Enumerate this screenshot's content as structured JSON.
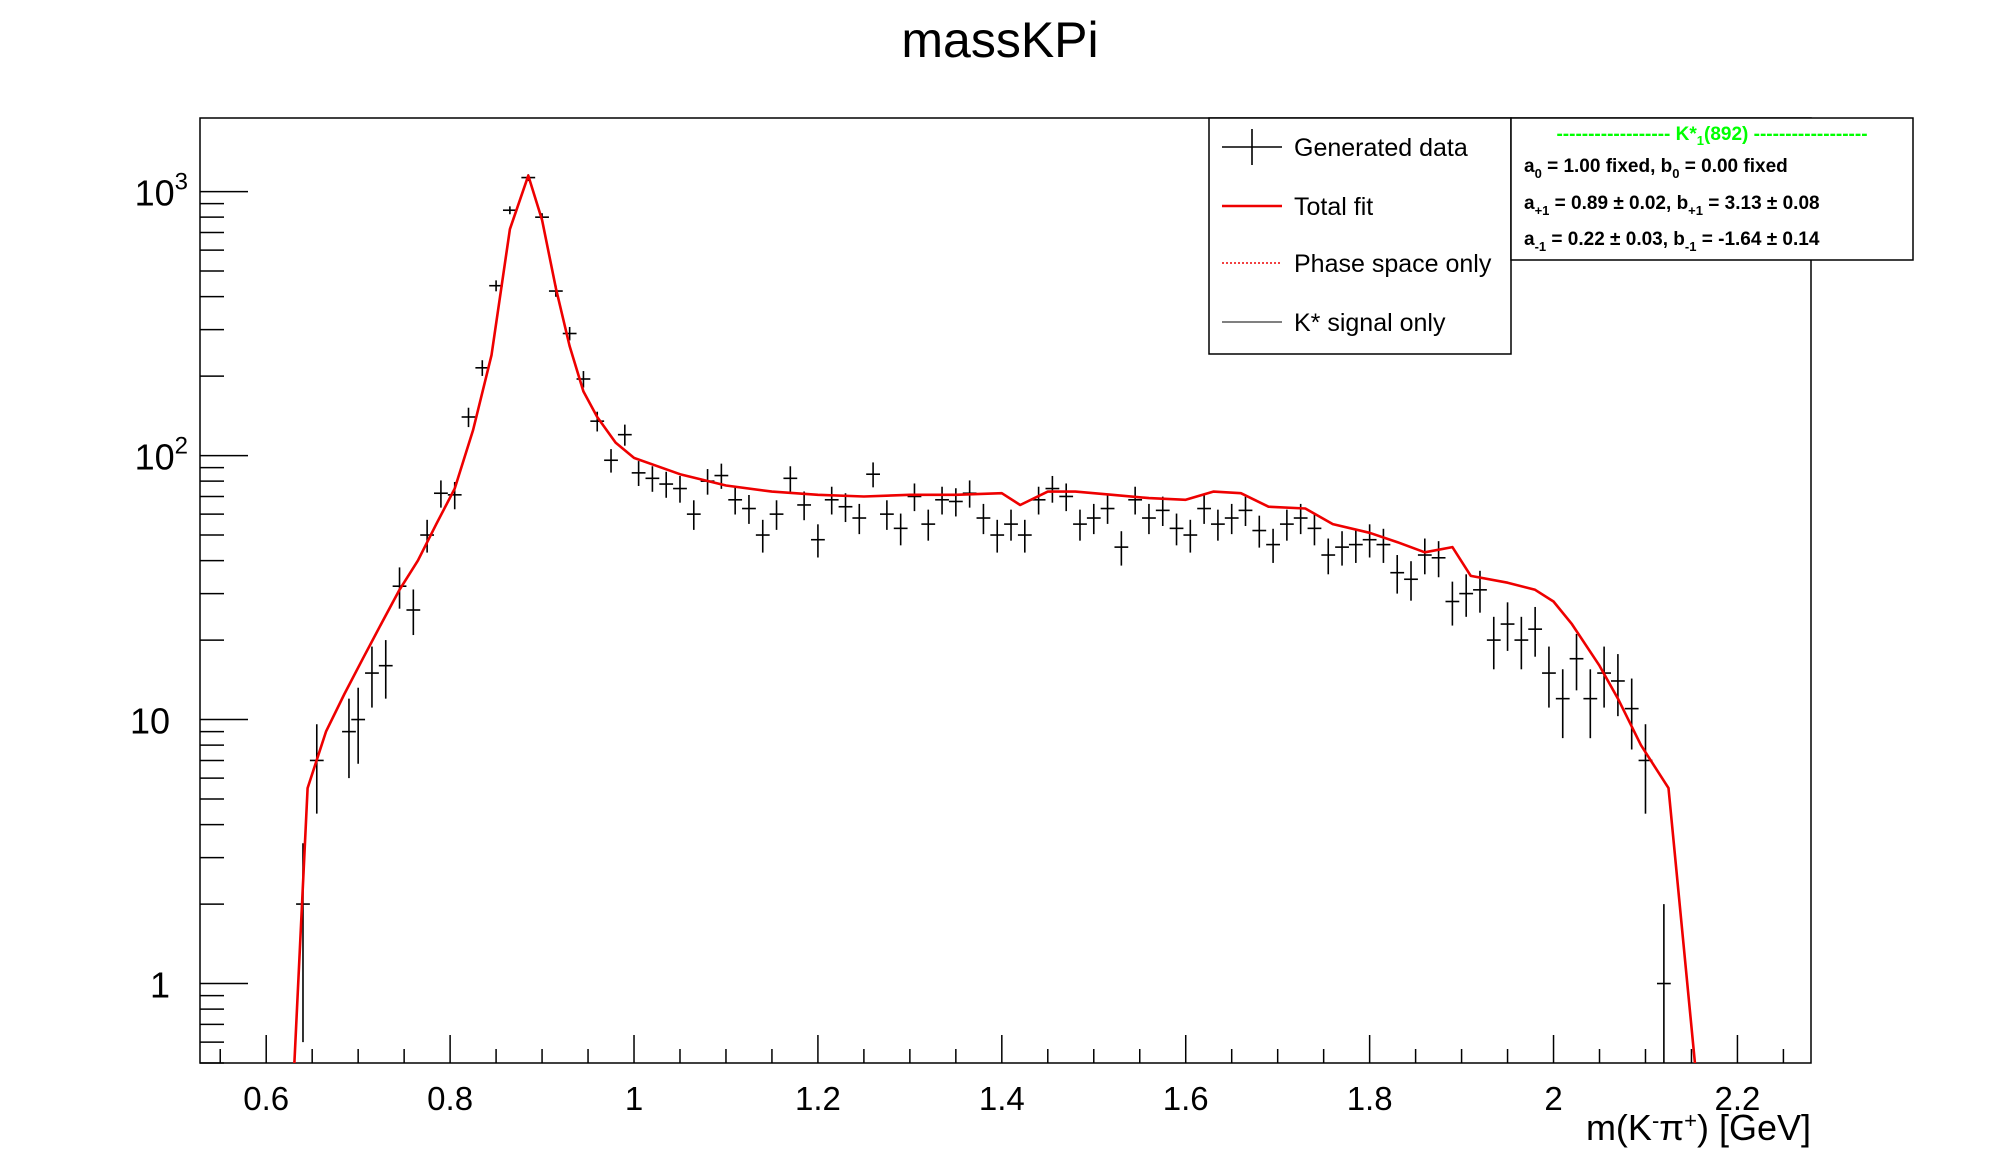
{
  "chart_data": {
    "type": "line",
    "title": "massKPi",
    "xlabel_parts": {
      "pre": "m(K",
      "sup1": "-",
      "mid": "π",
      "sup2": "+",
      "post": ") [GeV]"
    },
    "xlim": [
      0.528,
      2.28
    ],
    "ylim": [
      0.5,
      1900
    ],
    "log_y": true,
    "x_ticks": [
      {
        "v": 0.6,
        "label": "0.6"
      },
      {
        "v": 0.8,
        "label": "0.8"
      },
      {
        "v": 1.0,
        "label": "1"
      },
      {
        "v": 1.2,
        "label": "1.2"
      },
      {
        "v": 1.4,
        "label": "1.4"
      },
      {
        "v": 1.6,
        "label": "1.6"
      },
      {
        "v": 1.8,
        "label": "1.8"
      },
      {
        "v": 2.0,
        "label": "2"
      },
      {
        "v": 2.2,
        "label": "2.2"
      }
    ],
    "y_ticks": [
      {
        "v": 1,
        "base": "1",
        "exp": ""
      },
      {
        "v": 10,
        "base": "10",
        "exp": ""
      },
      {
        "v": 100,
        "base": "10",
        "exp": "2"
      },
      {
        "v": 1000,
        "base": "10",
        "exp": "3"
      }
    ],
    "bin_half_width": 0.0075,
    "series": [
      {
        "name": "Generated data",
        "style": "points",
        "color": "#000000",
        "points": [
          [
            0.64,
            2.0,
            1.4
          ],
          [
            0.655,
            7.0,
            2.6
          ],
          [
            0.69,
            9.0,
            3.0
          ],
          [
            0.7,
            10.0,
            3.2
          ],
          [
            0.715,
            15.0,
            3.9
          ],
          [
            0.73,
            16.0,
            4.0
          ],
          [
            0.745,
            32.0,
            5.7
          ],
          [
            0.76,
            26.0,
            5.1
          ],
          [
            0.775,
            50.0,
            7.1
          ],
          [
            0.79,
            72.0,
            8.5
          ],
          [
            0.805,
            71.0,
            8.4
          ],
          [
            0.82,
            140.0,
            11.8
          ],
          [
            0.835,
            215.0,
            14.7
          ],
          [
            0.85,
            440.0,
            21.0
          ],
          [
            0.865,
            850.0,
            29.2
          ],
          [
            0.885,
            1130.0,
            33.6
          ],
          [
            0.9,
            800.0,
            28.3
          ],
          [
            0.915,
            420.0,
            20.5
          ],
          [
            0.93,
            290.0,
            17.0
          ],
          [
            0.945,
            195.0,
            14.0
          ],
          [
            0.96,
            135.0,
            11.6
          ],
          [
            0.975,
            96.0,
            9.8
          ],
          [
            0.99,
            120.0,
            11.0
          ],
          [
            1.005,
            86.0,
            9.3
          ],
          [
            1.02,
            82.0,
            9.1
          ],
          [
            1.035,
            78.0,
            8.8
          ],
          [
            1.05,
            75.0,
            8.7
          ],
          [
            1.065,
            60.0,
            7.7
          ],
          [
            1.08,
            80.0,
            8.9
          ],
          [
            1.095,
            84.0,
            9.2
          ],
          [
            1.11,
            68.0,
            8.2
          ],
          [
            1.125,
            63.0,
            7.9
          ],
          [
            1.14,
            50.0,
            7.1
          ],
          [
            1.155,
            60.0,
            7.7
          ],
          [
            1.17,
            82.0,
            9.1
          ],
          [
            1.185,
            65.0,
            8.1
          ],
          [
            1.2,
            48.0,
            6.9
          ],
          [
            1.215,
            68.0,
            8.2
          ],
          [
            1.23,
            64.0,
            8.0
          ],
          [
            1.245,
            58.0,
            7.6
          ],
          [
            1.26,
            85.0,
            9.2
          ],
          [
            1.275,
            60.0,
            7.7
          ],
          [
            1.29,
            53.0,
            7.3
          ],
          [
            1.305,
            70.0,
            8.4
          ],
          [
            1.32,
            55.0,
            7.4
          ],
          [
            1.335,
            68.0,
            8.2
          ],
          [
            1.35,
            67.0,
            8.2
          ],
          [
            1.365,
            72.0,
            8.5
          ],
          [
            1.38,
            58.0,
            7.6
          ],
          [
            1.395,
            50.0,
            7.1
          ],
          [
            1.41,
            55.0,
            7.4
          ],
          [
            1.425,
            50.0,
            7.1
          ],
          [
            1.44,
            68.0,
            8.2
          ],
          [
            1.455,
            75.0,
            8.7
          ],
          [
            1.47,
            70.0,
            8.4
          ],
          [
            1.485,
            55.0,
            7.4
          ],
          [
            1.5,
            58.0,
            7.6
          ],
          [
            1.515,
            63.0,
            7.9
          ],
          [
            1.53,
            45.0,
            6.7
          ],
          [
            1.545,
            68.0,
            8.2
          ],
          [
            1.56,
            58.0,
            7.6
          ],
          [
            1.575,
            62.0,
            7.9
          ],
          [
            1.59,
            53.0,
            7.3
          ],
          [
            1.605,
            50.0,
            7.1
          ],
          [
            1.62,
            63.0,
            7.9
          ],
          [
            1.635,
            55.0,
            7.4
          ],
          [
            1.65,
            58.0,
            7.6
          ],
          [
            1.665,
            62.0,
            7.9
          ],
          [
            1.68,
            52.0,
            7.2
          ],
          [
            1.695,
            46.0,
            6.8
          ],
          [
            1.71,
            55.0,
            7.4
          ],
          [
            1.725,
            58.0,
            7.6
          ],
          [
            1.74,
            53.0,
            7.3
          ],
          [
            1.755,
            42.0,
            6.5
          ],
          [
            1.77,
            45.0,
            6.7
          ],
          [
            1.785,
            46.0,
            6.8
          ],
          [
            1.8,
            48.0,
            6.9
          ],
          [
            1.815,
            46.0,
            6.8
          ],
          [
            1.83,
            36.0,
            6.0
          ],
          [
            1.845,
            34.0,
            5.8
          ],
          [
            1.86,
            42.0,
            6.5
          ],
          [
            1.875,
            41.0,
            6.4
          ],
          [
            1.89,
            28.0,
            5.3
          ],
          [
            1.905,
            30.0,
            5.5
          ],
          [
            1.92,
            31.0,
            5.6
          ],
          [
            1.935,
            20.0,
            4.5
          ],
          [
            1.95,
            23.0,
            4.8
          ],
          [
            1.965,
            20.0,
            4.5
          ],
          [
            1.98,
            22.0,
            4.7
          ],
          [
            1.995,
            15.0,
            3.9
          ],
          [
            2.01,
            12.0,
            3.5
          ],
          [
            2.025,
            17.0,
            4.1
          ],
          [
            2.04,
            12.0,
            3.5
          ],
          [
            2.055,
            15.0,
            3.9
          ],
          [
            2.07,
            14.0,
            3.7
          ],
          [
            2.085,
            11.0,
            3.3
          ],
          [
            2.1,
            7.0,
            2.6
          ],
          [
            2.12,
            1.0,
            1.0
          ]
        ]
      },
      {
        "name": "Total fit",
        "style": "line",
        "color": "#ee0000",
        "points": [
          [
            0.63,
            0.45
          ],
          [
            0.645,
            5.5
          ],
          [
            0.665,
            9.0
          ],
          [
            0.685,
            12.5
          ],
          [
            0.705,
            17.0
          ],
          [
            0.725,
            23.0
          ],
          [
            0.745,
            31.0
          ],
          [
            0.765,
            40.0
          ],
          [
            0.785,
            55.0
          ],
          [
            0.805,
            75.0
          ],
          [
            0.825,
            125.0
          ],
          [
            0.845,
            240.0
          ],
          [
            0.865,
            720.0
          ],
          [
            0.885,
            1150.0
          ],
          [
            0.9,
            780.0
          ],
          [
            0.915,
            430.0
          ],
          [
            0.93,
            260.0
          ],
          [
            0.945,
            175.0
          ],
          [
            0.96,
            140.0
          ],
          [
            0.98,
            112.0
          ],
          [
            1.0,
            98.0
          ],
          [
            1.05,
            85.0
          ],
          [
            1.1,
            77.0
          ],
          [
            1.15,
            73.0
          ],
          [
            1.2,
            71.0
          ],
          [
            1.25,
            70.0
          ],
          [
            1.3,
            71.0
          ],
          [
            1.35,
            71.0
          ],
          [
            1.4,
            72.0
          ],
          [
            1.42,
            65.0
          ],
          [
            1.45,
            73.0
          ],
          [
            1.48,
            73.0
          ],
          [
            1.52,
            71.0
          ],
          [
            1.56,
            69.0
          ],
          [
            1.6,
            68.0
          ],
          [
            1.63,
            73.0
          ],
          [
            1.66,
            72.0
          ],
          [
            1.69,
            64.0
          ],
          [
            1.73,
            63.0
          ],
          [
            1.76,
            55.0
          ],
          [
            1.8,
            51.0
          ],
          [
            1.83,
            47.0
          ],
          [
            1.86,
            43.0
          ],
          [
            1.89,
            45.0
          ],
          [
            1.91,
            35.0
          ],
          [
            1.95,
            33.0
          ],
          [
            1.98,
            31.0
          ],
          [
            2.0,
            28.0
          ],
          [
            2.02,
            23.0
          ],
          [
            2.05,
            16.0
          ],
          [
            2.07,
            12.0
          ],
          [
            2.095,
            8.0
          ],
          [
            2.125,
            5.5
          ],
          [
            2.155,
            0.45
          ]
        ]
      }
    ],
    "legend": {
      "placement": "top-right",
      "entries": [
        {
          "label": "Generated data",
          "marker": "cross",
          "color": "#000000"
        },
        {
          "label": "Total fit",
          "marker": "line",
          "color": "#ee0000"
        },
        {
          "label": "Phase space only",
          "marker": "dotted",
          "color": "#ee0000"
        },
        {
          "label": "K* signal only",
          "marker": "thin",
          "color": "#000000"
        }
      ]
    },
    "fit_box": {
      "header_dashes": "------------------",
      "header_name": "K*",
      "header_sub": "1",
      "header_suffix": "(892)",
      "header_color": "#00ff00",
      "lines": [
        [
          "a",
          "0",
          " = 1.00 fixed, ",
          "b",
          "0",
          " = 0.00 fixed"
        ],
        [
          "a",
          "+1",
          " = 0.89 ± 0.02, ",
          "b",
          "+1",
          " = 3.13 ± 0.08"
        ],
        [
          "a",
          "-1",
          " = 0.22 ± 0.03, ",
          "b",
          "-1",
          " = -1.64 ± 0.14"
        ]
      ]
    }
  }
}
